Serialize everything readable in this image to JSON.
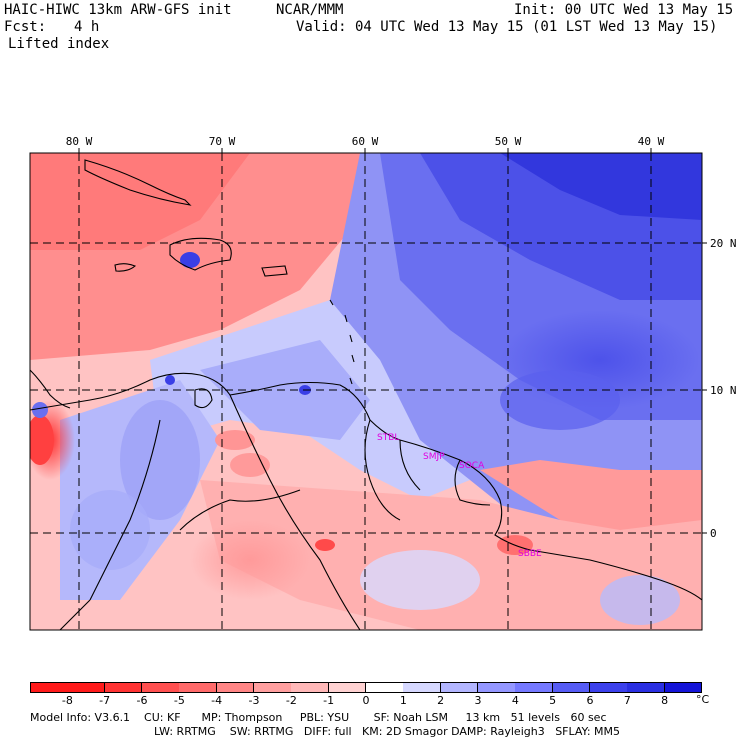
{
  "header": {
    "model_title": "HAIC-HIWC 13km ARW-GFS init",
    "org": "NCAR/MMM",
    "init": "Init: 00 UTC Wed 13 May 15",
    "fcst_label": "Fcst:",
    "fcst_value": "4 h",
    "valid": "Valid: 04 UTC Wed 13 May 15 (01 LST Wed 13 May 15)",
    "field": "Lifted index"
  },
  "axes": {
    "longitudes": [
      "80 W",
      "70 W",
      "60 W",
      "50 W",
      "40 W"
    ],
    "latitudes": [
      "20 N",
      "10 N",
      "0"
    ]
  },
  "stations": [
    "STBL",
    "SMJP",
    "SOCA",
    "SBBE"
  ],
  "colorbar": {
    "labels": [
      "-8",
      "-7",
      "-6",
      "-5",
      "-4",
      "-3",
      "-2",
      "-1",
      "0",
      "1",
      "2",
      "3",
      "4",
      "5",
      "6",
      "7",
      "8"
    ],
    "unit": "°C",
    "colors": [
      "#ff1a1a",
      "#ff3333",
      "#ff5050",
      "#ff6a6a",
      "#ff8585",
      "#ff9f9f",
      "#ffb8b8",
      "#ffd2d2",
      "#ffffff",
      "#d6d8ff",
      "#b3b6ff",
      "#9497ff",
      "#7579ff",
      "#565cf5",
      "#3c41ec",
      "#2a2fe2",
      "#1414d8"
    ]
  },
  "footer": {
    "line1": "Model Info: V3.6.1    CU: KF      MP: Thompson     PBL: YSU       SF: Noah LSM     13 km   51 levels   60 sec",
    "line2": "LW: RRTMG    SW: RRTMG   DIFF: full   KM: 2D Smagor DAMP: Rayleigh3   SFLAY: MM5"
  }
}
